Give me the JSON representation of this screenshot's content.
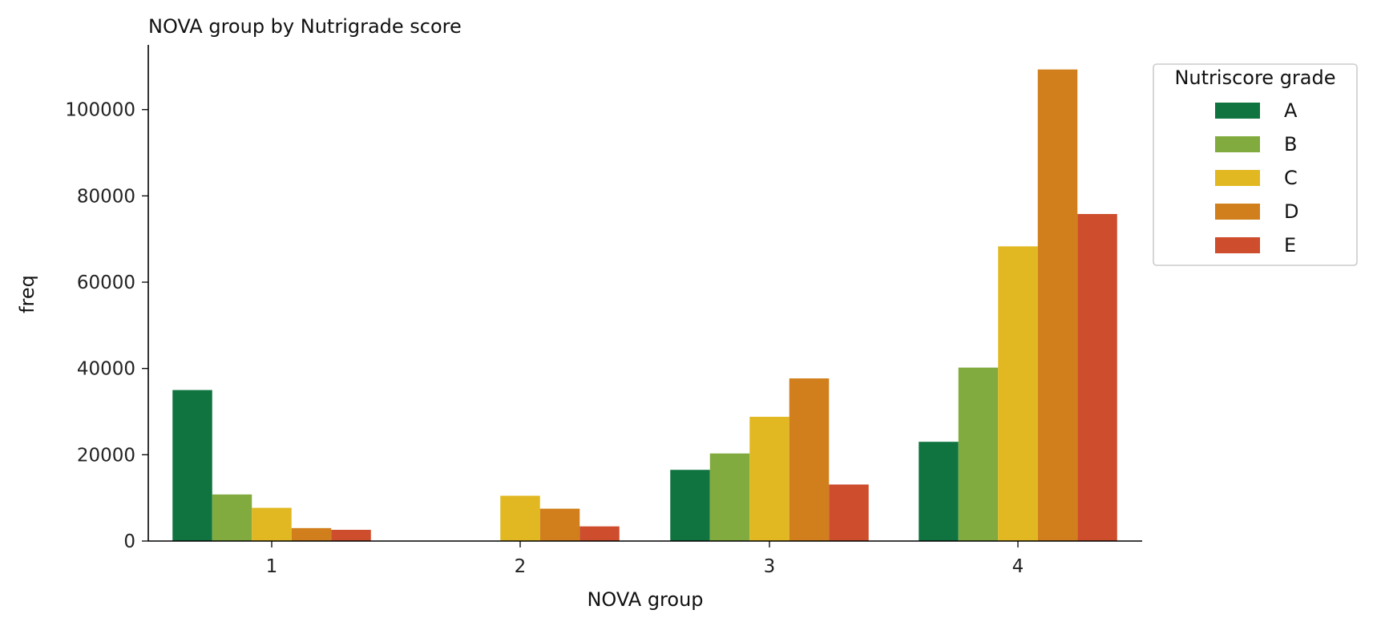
{
  "chart_data": {
    "type": "bar",
    "title": "NOVA group by Nutrigrade score",
    "xlabel": "NOVA group",
    "ylabel": "freq",
    "categories": [
      "1",
      "2",
      "3",
      "4"
    ],
    "ylim": [
      0,
      115000
    ],
    "yticks": [
      0,
      20000,
      40000,
      60000,
      80000,
      100000
    ],
    "grid": false,
    "legend": {
      "title": "Nutriscore grade",
      "placement": "upper right, outside plot"
    },
    "series": [
      {
        "name": "A",
        "color": "#107441",
        "values": [
          35000,
          0,
          16500,
          23000
        ]
      },
      {
        "name": "B",
        "color": "#81ab3e",
        "values": [
          10800,
          0,
          20300,
          40200
        ]
      },
      {
        "name": "C",
        "color": "#e1b821",
        "values": [
          7700,
          10500,
          28800,
          68300
        ]
      },
      {
        "name": "D",
        "color": "#d07f1c",
        "values": [
          3000,
          7500,
          37700,
          109300
        ]
      },
      {
        "name": "E",
        "color": "#cd4d2c",
        "values": [
          2600,
          3400,
          13100,
          75800
        ]
      }
    ]
  }
}
